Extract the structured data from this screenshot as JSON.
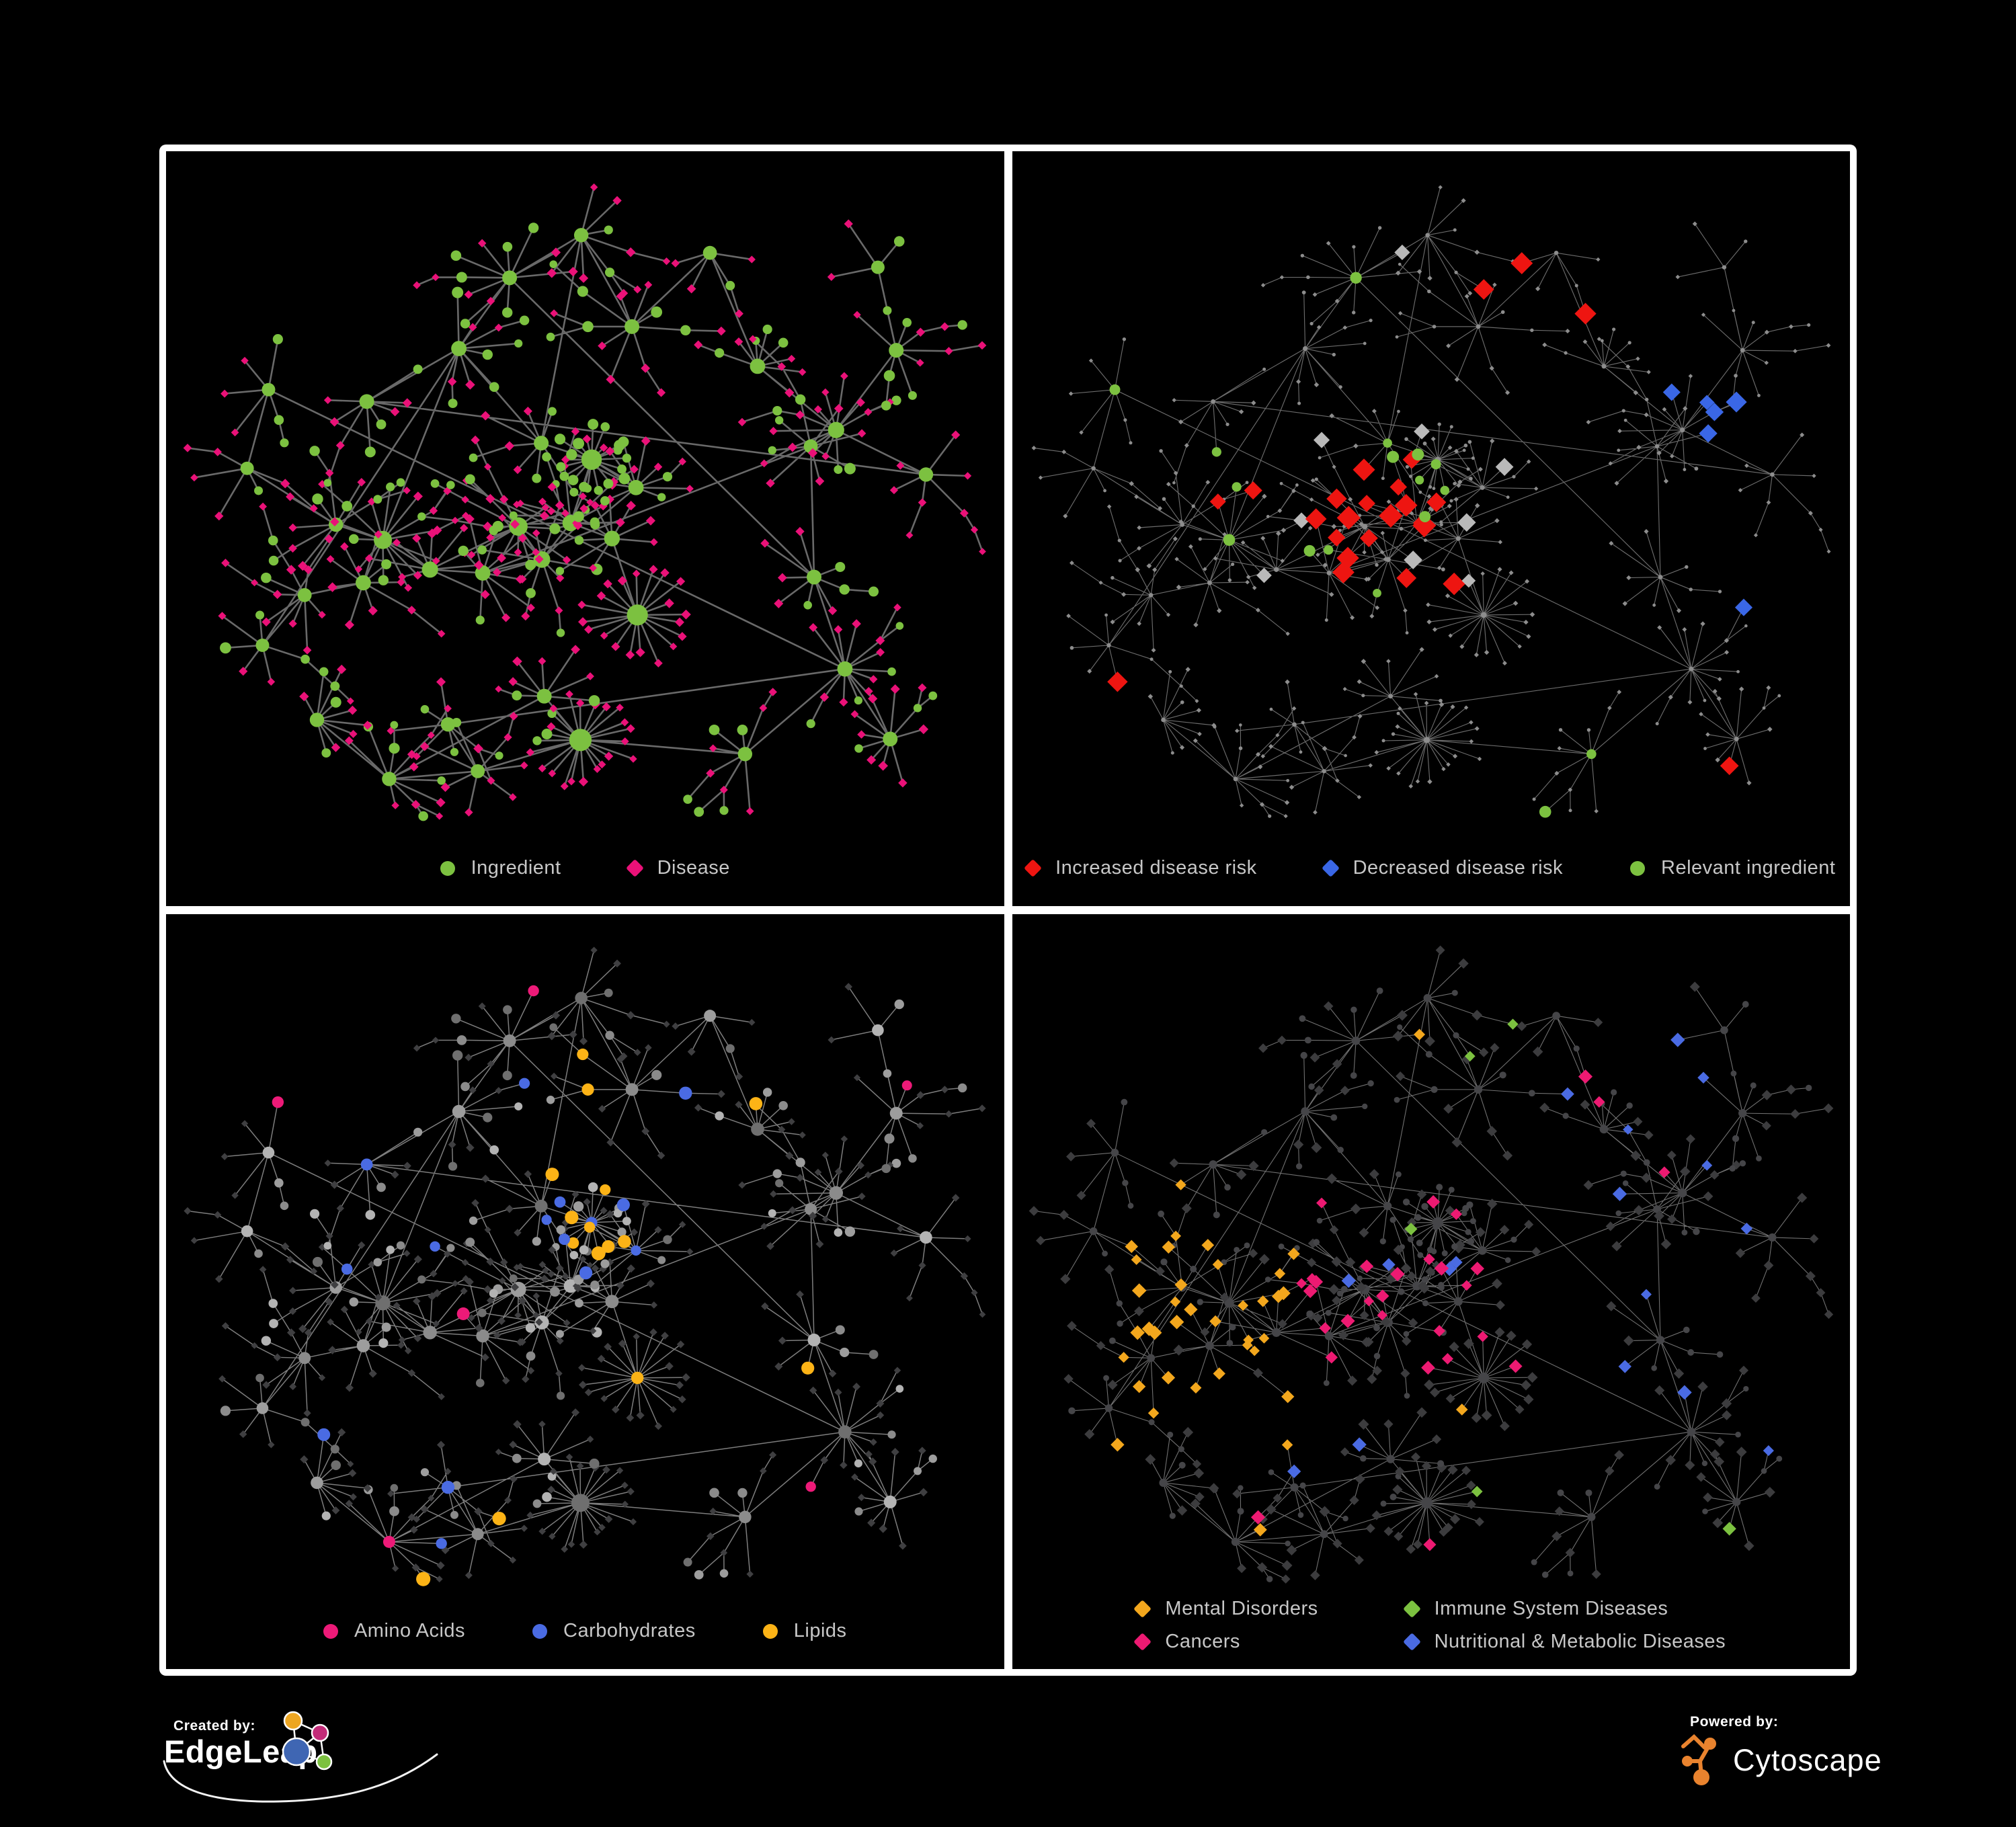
{
  "background": "#000000",
  "frame_color": "#ffffff",
  "footer": {
    "created_by": "Created by:",
    "edgeleap": "EdgeLeap",
    "powered_by": "Powered by:",
    "cytoscape": "Cytoscape",
    "cytoscape_color": "#e9832e",
    "edgeleap_logo_colors": {
      "blue": "#3f66b3",
      "orange": "#eda622",
      "magenta": "#c32b78",
      "green": "#7cc140"
    }
  },
  "network": {
    "seed": 1337,
    "leaf_ing_prob": 0.2,
    "branch_prob": 0.2,
    "extra_links": 9,
    "hubs": [
      [
        330,
        585,
        15
      ],
      [
        385,
        620,
        11
      ],
      [
        295,
        645,
        9
      ],
      [
        252,
        555,
        7
      ],
      [
        205,
        660,
        6
      ],
      [
        520,
        565,
        16
      ],
      [
        560,
        610,
        12
      ],
      [
        478,
        622,
        9
      ],
      [
        600,
        545,
        11
      ],
      [
        660,
        585,
        10
      ],
      [
        640,
        465,
        20,
        0.85
      ],
      [
        700,
        505,
        9,
        0.5
      ],
      [
        560,
        430,
        8
      ],
      [
        430,
        300,
        9,
        0.45
      ],
      [
        520,
        185,
        8,
        0.5
      ],
      [
        625,
        120,
        7,
        0.5
      ],
      [
        700,
        255,
        8,
        0.4
      ],
      [
        820,
        150,
        6,
        0.35
      ],
      [
        300,
        375,
        8,
        0.3
      ],
      [
        885,
        330,
        9
      ],
      [
        1005,
        420,
        11
      ],
      [
        1090,
        295,
        8
      ],
      [
        1135,
        480,
        7
      ],
      [
        960,
        440,
        6,
        0.5
      ],
      [
        955,
        625,
        8
      ],
      [
        1005,
        780,
        9
      ],
      [
        1085,
        880,
        8
      ],
      [
        870,
        905,
        7
      ],
      [
        622,
        880,
        24
      ],
      [
        470,
        930,
        6
      ],
      [
        340,
        930,
        7
      ],
      [
        700,
        690,
        21
      ],
      [
        560,
        810,
        8
      ],
      [
        430,
        860,
        7
      ],
      [
        230,
        840,
        7
      ],
      [
        150,
        740,
        5
      ],
      [
        120,
        470,
        5
      ],
      [
        150,
        350,
        5
      ],
      [
        1050,
        180,
        5
      ]
    ]
  },
  "panels": [
    {
      "id": "ingredient-disease",
      "legend_layout": "row",
      "legend": [
        {
          "label": "Ingredient",
          "shape": "circle",
          "color": "#7cc140"
        },
        {
          "label": "Disease",
          "shape": "diamond",
          "color": "#ea1178"
        }
      ],
      "style": {
        "edge": "#6f6f6f",
        "edge_w": 2.6,
        "edge_o": 0.95,
        "ing": {
          "shape": "circle",
          "color": "#7cc140",
          "base": 2.5,
          "k": 1.05
        },
        "dis": {
          "shape": "diamond",
          "color": "#ea1178",
          "base": 3.2,
          "k": 0.72
        },
        "rules": []
      }
    },
    {
      "id": "disease-risk",
      "legend_layout": "row",
      "legend": [
        {
          "label": "Increased disease risk",
          "shape": "diamond",
          "color": "#ee1511"
        },
        {
          "label": "Decreased disease risk",
          "shape": "diamond",
          "color": "#3a67e6"
        },
        {
          "label": "Relevant ingredient",
          "shape": "circle",
          "color": "#7cc140"
        }
      ],
      "style": {
        "edge": "#868686",
        "edge_w": 1.15,
        "edge_o": 0.8,
        "ing": {
          "shape": "circle",
          "color": "#8d8d8d",
          "base": 1.6,
          "k": 0.22
        },
        "dis": {
          "shape": "diamond",
          "color": "#8d8d8d",
          "base": 2.2,
          "k": 0.28
        },
        "rules": [
          {
            "type": "dis",
            "shape": "diamond",
            "color": "#ee1511",
            "size": 15,
            "region": [
              450,
              410,
              690,
              650
            ],
            "prob": 0.35,
            "gprob": 0.02
          },
          {
            "type": "dis",
            "shape": "diamond",
            "color": "#ee1511",
            "size": 14,
            "region": [
              240,
              410,
              420,
              540
            ],
            "prob": 0.25,
            "gprob": 0
          },
          {
            "type": "dis",
            "shape": "diamond",
            "color": "#3a67e6",
            "size": 13,
            "region": [
              950,
              340,
              1100,
              430
            ],
            "prob": 0.55,
            "gprob": 0.003
          },
          {
            "type": "dis",
            "shape": "diamond",
            "color": "#3a67e6",
            "size": 13,
            "region": [
              265,
              450,
              390,
              570
            ],
            "prob": 0.4,
            "gprob": 0
          },
          {
            "type": "dis",
            "shape": "diamond",
            "color": "#b9b9b9",
            "size": 12,
            "region": [
              250,
              420,
              750,
              670
            ],
            "prob": 0.07,
            "gprob": 0.006
          },
          {
            "type": "ing",
            "shape": "circle",
            "color": "#7cc140",
            "size": 7.5,
            "region": [
              250,
              360,
              650,
              670
            ],
            "prob": 0.3,
            "gprob": 0.03
          }
        ]
      }
    },
    {
      "id": "nutrient-categories",
      "legend_layout": "row",
      "legend": [
        {
          "label": "Amino Acids",
          "shape": "circle",
          "color": "#ed1a78"
        },
        {
          "label": "Carbohydrates",
          "shape": "circle",
          "color": "#4a6be3"
        },
        {
          "label": "Lipids",
          "shape": "circle",
          "color": "#fcb316"
        }
      ],
      "style": {
        "edge": "#9c9c9c",
        "edge_w": 1.5,
        "edge_o": 0.8,
        "ing": {
          "shape": "circle",
          "color": [
            "#9d9d9d",
            "#8b8b8b",
            "#b3b3b3",
            "#6f6f6f"
          ],
          "base": 3.4,
          "k": 0.75
        },
        "dis": {
          "shape": "diamond",
          "color": "#3f3f41",
          "base": 3.4,
          "k": 0.5
        },
        "rules": [
          {
            "type": "ing",
            "shape": "circle",
            "color": "#fcb316",
            "size": 9,
            "region": [
              560,
              370,
              700,
              500
            ],
            "prob": 0.55,
            "gprob": 0.035
          },
          {
            "type": "ing",
            "shape": "circle",
            "color": "#fcb316",
            "size": 8.5,
            "region": [
              380,
              70,
              640,
              270
            ],
            "prob": 0.22,
            "gprob": 0
          },
          {
            "type": "ing",
            "shape": "circle",
            "color": "#fcb316",
            "size": 9,
            "region": [
              640,
              640,
              780,
              780
            ],
            "prob": 0.5,
            "gprob": 0
          },
          {
            "type": "ing",
            "shape": "circle",
            "color": "#4a6be3",
            "size": 8.5,
            "region": [
              560,
              380,
              760,
              540
            ],
            "prob": 0.3,
            "gprob": 0.02
          },
          {
            "type": "ing",
            "shape": "circle",
            "color": "#ed1a78",
            "size": 8.5,
            "prob": 0.055
          }
        ]
      }
    },
    {
      "id": "disease-categories",
      "legend_layout": "grid2",
      "legend": [
        {
          "label": "Mental Disorders",
          "shape": "diamond",
          "color": "#f3a71d"
        },
        {
          "label": "Immune System Diseases",
          "shape": "diamond",
          "color": "#7cc140"
        },
        {
          "label": "Cancers",
          "shape": "diamond",
          "color": "#ed1a72"
        },
        {
          "label": "Nutritional & Metabolic Diseases",
          "shape": "diamond",
          "color": "#4a6be3"
        }
      ],
      "style": {
        "edge": "#a0a0a0",
        "edge_w": 1.1,
        "edge_o": 0.7,
        "ing": {
          "shape": "circle",
          "color": "#454548",
          "base": 2.8,
          "k": 0.42
        },
        "dis": {
          "shape": "diamond",
          "color": "#3c3c3e",
          "base": 5.2,
          "k": 0.5
        },
        "rules": [
          {
            "type": "dis",
            "shape": "diamond",
            "color": "#f3a71d",
            "size": 9,
            "region": [
              130,
              400,
              420,
              800
            ],
            "prob": 0.72,
            "gprob": 0.018
          },
          {
            "type": "dis",
            "shape": "diamond",
            "color": "#ed1a72",
            "size": 9,
            "region": [
              420,
              390,
              710,
              680
            ],
            "prob": 0.42,
            "gprob": 0.028
          },
          {
            "type": "dis",
            "shape": "diamond",
            "color": "#4a6be3",
            "size": 9,
            "region": [
              790,
              550,
              970,
              710
            ],
            "prob": 0.5,
            "gprob": 0
          },
          {
            "type": "dis",
            "shape": "diamond",
            "color": "#4a6be3",
            "size": 9,
            "region": [
              690,
              60,
              1170,
              460
            ],
            "prob": 0.24,
            "gprob": 0.045
          },
          {
            "type": "dis",
            "shape": "diamond",
            "color": "#7cc140",
            "size": 9,
            "prob": 0.022
          }
        ]
      }
    }
  ]
}
